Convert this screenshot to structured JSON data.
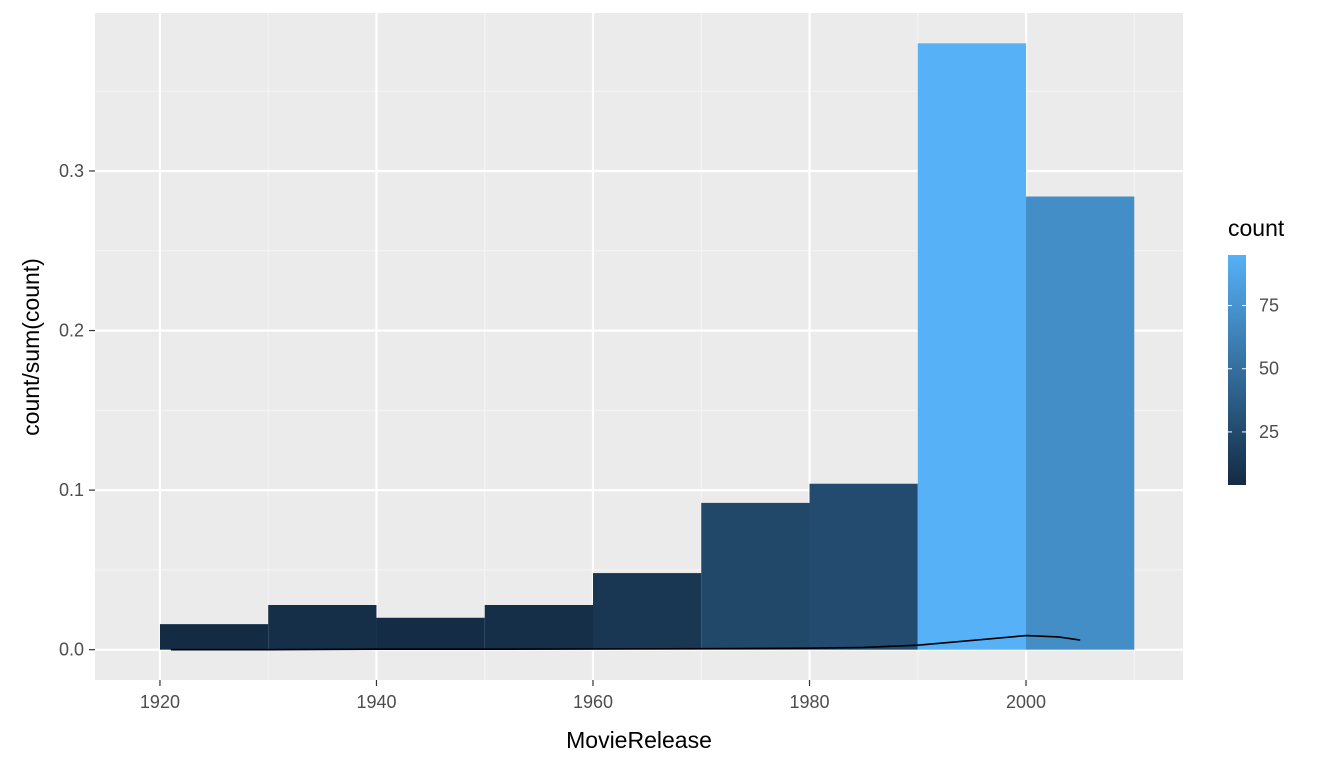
{
  "chart_data": {
    "type": "bar",
    "xlabel": "MovieRelease",
    "ylabel": "count/sum(count)",
    "xlim": [
      1914,
      2014.5
    ],
    "ylim": [
      -0.019,
      0.399
    ],
    "x_ticks": [
      1920,
      1940,
      1960,
      1980,
      2000
    ],
    "x_tick_labels": [
      "1920",
      "1940",
      "1960",
      "1980",
      "2000"
    ],
    "y_ticks": [
      0.0,
      0.1,
      0.2,
      0.3
    ],
    "y_tick_labels": [
      "0.0",
      "0.1",
      "0.2",
      "0.3"
    ],
    "grid": true,
    "bins": [
      {
        "start": 1920,
        "end": 1930,
        "value": 0.016,
        "count": 4
      },
      {
        "start": 1930,
        "end": 1940,
        "value": 0.028,
        "count": 7
      },
      {
        "start": 1940,
        "end": 1950,
        "value": 0.02,
        "count": 5
      },
      {
        "start": 1950,
        "end": 1960,
        "value": 0.028,
        "count": 7
      },
      {
        "start": 1960,
        "end": 1970,
        "value": 0.048,
        "count": 12
      },
      {
        "start": 1970,
        "end": 1980,
        "value": 0.092,
        "count": 23
      },
      {
        "start": 1980,
        "end": 1990,
        "value": 0.104,
        "count": 26
      },
      {
        "start": 1990,
        "end": 2000,
        "value": 0.38,
        "count": 95
      },
      {
        "start": 2000,
        "end": 2010,
        "value": 0.284,
        "count": 71
      }
    ],
    "density_line": {
      "x": [
        1921,
        1930,
        1940,
        1950,
        1960,
        1970,
        1980,
        1985,
        1990,
        1995,
        2000,
        2003,
        2005
      ],
      "y": [
        0.0,
        0.0,
        0.0003,
        0.0003,
        0.0004,
        0.0006,
        0.0009,
        0.0014,
        0.0028,
        0.0058,
        0.0088,
        0.008,
        0.006
      ]
    },
    "legend": {
      "title": "count",
      "placement": "right",
      "low_color": "#132B43",
      "high_color": "#56B1F7",
      "min_count": 4,
      "max_count": 95,
      "ticks": [
        25,
        50,
        75
      ],
      "tick_labels": [
        "25",
        "50",
        "75"
      ]
    }
  },
  "colors": {
    "panel_background": "#EBEBEB",
    "grid_major": "#FFFFFF",
    "grid_minor": "#F5F5F5",
    "line": "#000000"
  }
}
